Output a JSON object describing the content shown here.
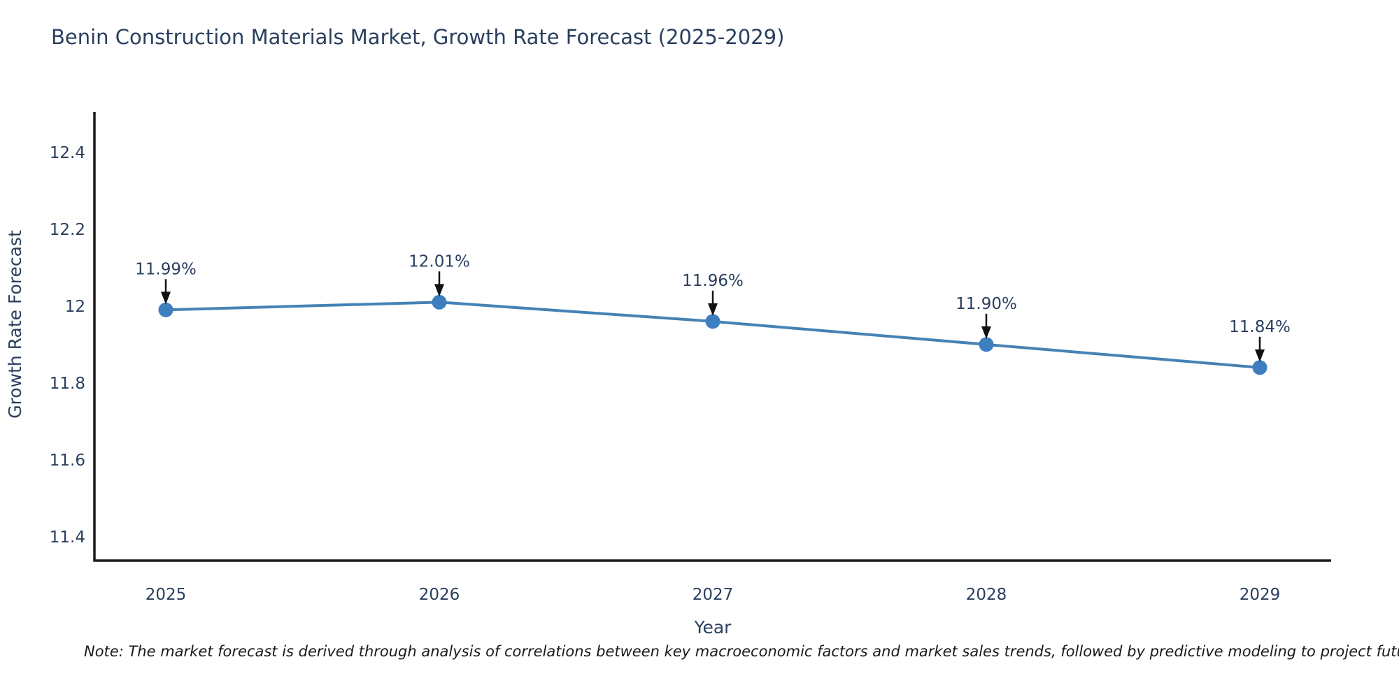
{
  "page": {
    "background": "#ffffff"
  },
  "chart_data": {
    "type": "line",
    "title": "Benin Construction Materials Market, Growth Rate Forecast (2025-2029)",
    "xlabel": "Year",
    "ylabel": "Growth Rate Forecast",
    "x": [
      2025,
      2026,
      2027,
      2028,
      2029
    ],
    "series": [
      {
        "name": "Growth Rate Forecast",
        "values": [
          11.99,
          12.01,
          11.96,
          11.9,
          11.84
        ]
      }
    ],
    "point_labels": [
      "11.99%",
      "12.01%",
      "11.96%",
      "11.90%",
      "11.84%"
    ],
    "yticks": [
      11.4,
      11.6,
      11.8,
      12.0,
      12.2,
      12.4
    ],
    "ylim": [
      11.338,
      12.505
    ],
    "grid": false,
    "legend": "none",
    "annotations_style": "arrow-down-to-point",
    "colors": {
      "line": "#4682b4",
      "marker": "#3d7ebf",
      "axis": "#1c1c1c",
      "text": "#2a3f5f",
      "arrow": "#111111"
    }
  },
  "note": "Note: The market forecast is derived through analysis of correlations between key macroeconomic factors and market sales trends, followed by predictive modeling to project future sal"
}
